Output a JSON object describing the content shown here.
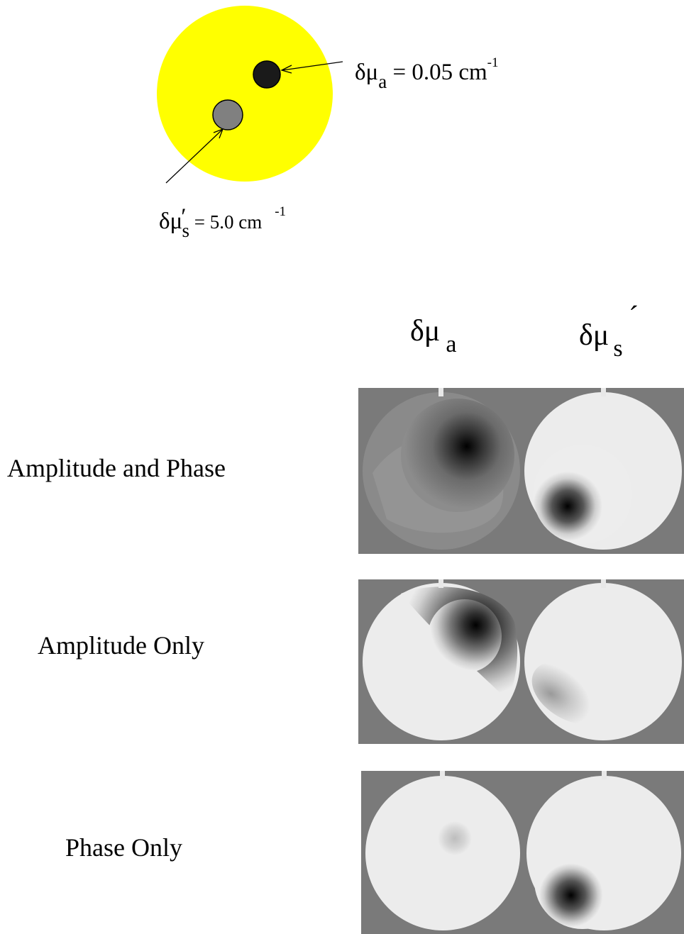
{
  "schematic": {
    "absorber": {
      "symbol": "δμ",
      "subscript": "a",
      "equals": " = 0.05 cm",
      "exponent": "-1"
    },
    "scatterer": {
      "symbol": "δμ",
      "prime": "′",
      "subscript": "s",
      "equals": " =  5.0 cm",
      "exponent": "-1"
    },
    "colors": {
      "background_disk": "#ffff00",
      "absorber": "#1a1a1a",
      "scatterer": "#808080"
    }
  },
  "columns": {
    "absorption": {
      "symbol": "δμ",
      "subscript": "a"
    },
    "scattering": {
      "symbol": "δμ",
      "subscript": "s",
      "prime": "´"
    }
  },
  "rows": [
    {
      "label": "Amplitude and Phase"
    },
    {
      "label": "Amplitude Only"
    },
    {
      "label": "Phase Only"
    }
  ]
}
